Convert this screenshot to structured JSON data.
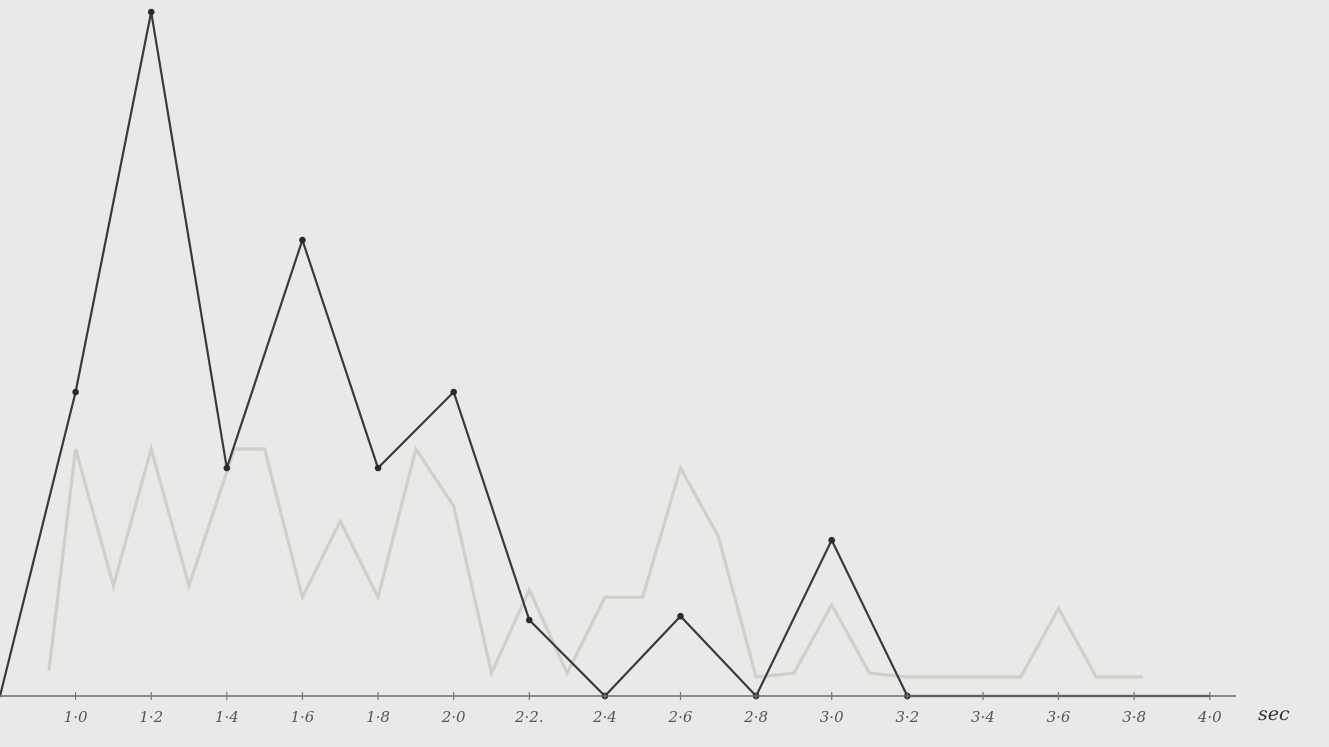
{
  "chart_data": {
    "type": "line",
    "title": "",
    "xlabel": "sec",
    "ylabel": "",
    "x_ticks": [
      {
        "label": "1·0",
        "x": 1.0
      },
      {
        "label": "1·2",
        "x": 1.2
      },
      {
        "label": "1·4",
        "x": 1.4
      },
      {
        "label": "1·6",
        "x": 1.6
      },
      {
        "label": "1·8",
        "x": 1.8
      },
      {
        "label": "2·0",
        "x": 2.0
      },
      {
        "label": "2·2.",
        "x": 2.2
      },
      {
        "label": "2·4",
        "x": 2.4
      },
      {
        "label": "2·6",
        "x": 2.6
      },
      {
        "label": "2·8",
        "x": 2.8
      },
      {
        "label": "3·0",
        "x": 3.0
      },
      {
        "label": "3·2",
        "x": 3.2
      },
      {
        "label": "3·4",
        "x": 3.4
      },
      {
        "label": "3·6",
        "x": 3.6
      },
      {
        "label": "3·8",
        "x": 3.8
      },
      {
        "label": "4·0",
        "x": 4.0
      }
    ],
    "xlim": [
      0.8,
      4.08
    ],
    "ylim": [
      0,
      9
    ],
    "grid": false,
    "legend": "none",
    "series": [
      {
        "color": "#3a3a3a",
        "markers": true,
        "x": [
          0.8,
          1.0,
          1.2,
          1.4,
          1.6,
          1.8,
          2.0,
          2.2,
          2.4,
          2.6,
          2.8,
          3.0,
          3.2,
          4.0
        ],
        "y": [
          0,
          4,
          9,
          3,
          6,
          3,
          4,
          1,
          0,
          1.05,
          0,
          2.05,
          0,
          0
        ]
      },
      {
        "color": "#cfcfcc",
        "markers": false,
        "x": [
          0.93,
          1.0,
          1.1,
          1.2,
          1.3,
          1.42,
          1.5,
          1.6,
          1.7,
          1.8,
          1.9,
          2.0,
          2.1,
          2.2,
          2.3,
          2.4,
          2.5,
          2.6,
          2.7,
          2.8,
          2.9,
          3.0,
          3.1,
          3.2,
          3.5,
          3.6,
          3.7,
          3.82
        ],
        "y": [
          0.35,
          3.25,
          1.45,
          3.25,
          1.45,
          3.25,
          3.25,
          1.3,
          2.3,
          1.3,
          3.25,
          2.5,
          0.3,
          1.4,
          0.3,
          1.3,
          1.3,
          3.0,
          2.1,
          0.25,
          0.3,
          1.2,
          0.3,
          0.25,
          0.25,
          1.15,
          0.25,
          0.25
        ]
      }
    ]
  }
}
